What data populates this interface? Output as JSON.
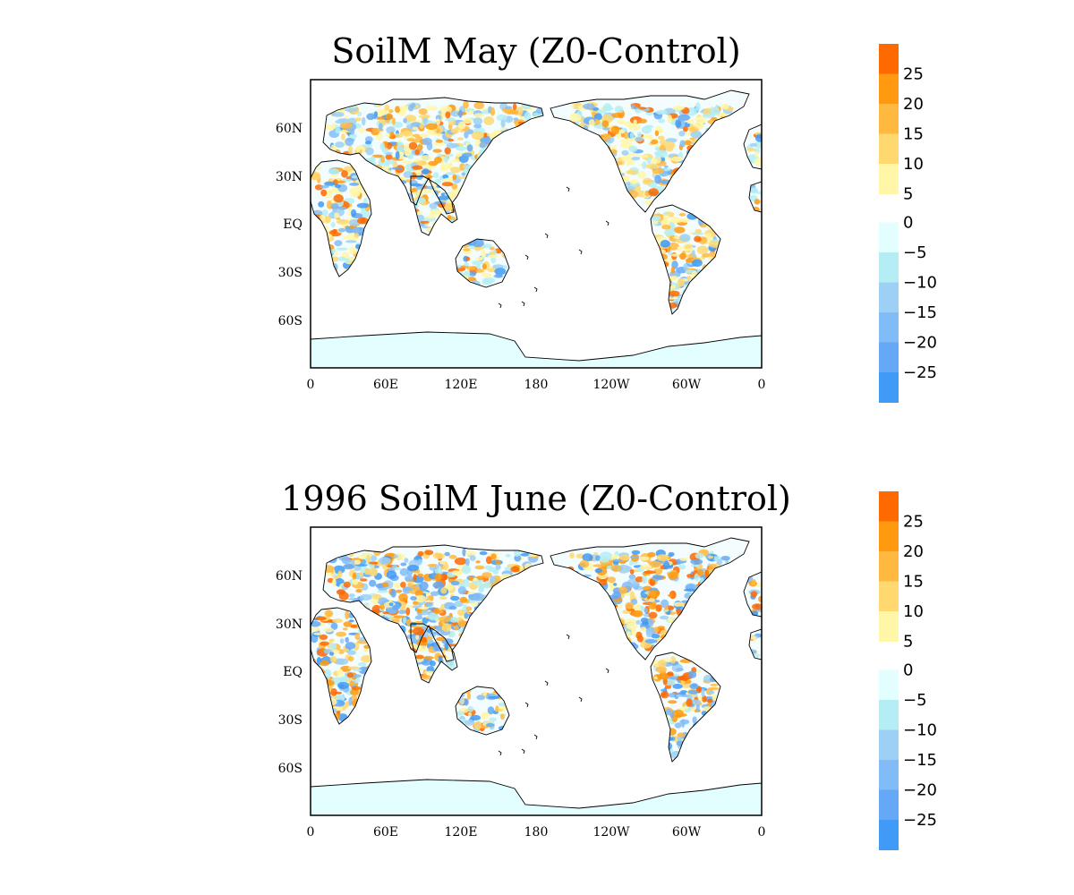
{
  "panels": [
    {
      "title": "SoilM May (Z0-Control)",
      "lat_labels": [
        "60N",
        "30N",
        "EQ",
        "30S",
        "60S"
      ],
      "lon_labels": [
        "0",
        "60E",
        "120E",
        "180",
        "120W",
        "60W",
        "0"
      ]
    },
    {
      "title": "1996 SoilM June (Z0-Control)",
      "lat_labels": [
        "60N",
        "30N",
        "EQ",
        "30S",
        "60S"
      ],
      "lon_labels": [
        "0",
        "60E",
        "120E",
        "180",
        "120W",
        "60W",
        "0"
      ]
    }
  ],
  "colorbar": {
    "positive_labels": [
      "25",
      "20",
      "15",
      "10",
      "5"
    ],
    "negative_labels": [
      "0",
      "-5",
      "-10",
      "-15",
      "-20",
      "-25"
    ],
    "positive_colors": [
      "#ff6a00",
      "#ff9a10",
      "#ffb840",
      "#ffd870",
      "#fff6a8"
    ],
    "negative_colors": [
      "#e2fefe",
      "#b4eef4",
      "#9ed0f6",
      "#82bcf6",
      "#64a8f6",
      "#409af6"
    ]
  },
  "map_colors": {
    "land_fill": "#ffffff",
    "antarctica_fill": "#e2fefe",
    "coast": "#000000"
  }
}
